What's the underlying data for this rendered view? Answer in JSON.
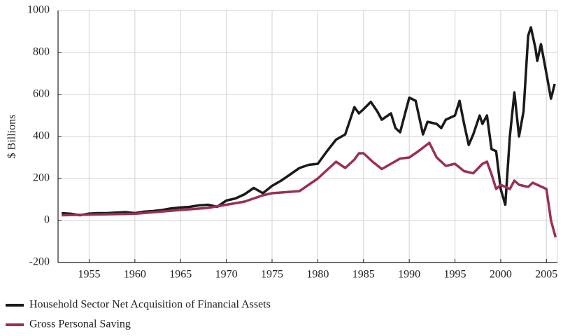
{
  "chart_data": {
    "type": "line",
    "y_label": "$ Billions",
    "xlim": [
      1951.6,
      2006.2
    ],
    "xticks": [
      1955,
      1960,
      1965,
      1970,
      1975,
      1980,
      1985,
      1990,
      1995,
      2000,
      2005
    ],
    "ylim": [
      -200,
      1000
    ],
    "yticks": [
      -200,
      0,
      200,
      400,
      600,
      800,
      1000
    ],
    "grid": true,
    "legend": "bottom-left",
    "series": [
      {
        "name": "Household Sector Net Acquisition of Financial Assets",
        "color": "#1a1a1a",
        "x": [
          1952,
          1953,
          1954,
          1955,
          1956,
          1957,
          1958,
          1959,
          1960,
          1961,
          1962,
          1963,
          1964,
          1965,
          1966,
          1967,
          1968,
          1969,
          1970,
          1971,
          1972,
          1973,
          1974,
          1975,
          1976,
          1977,
          1978,
          1979,
          1980,
          1981,
          1982,
          1983,
          1984,
          1984.5,
          1985,
          1985.8,
          1986.5,
          1987,
          1988,
          1988.5,
          1989,
          1990,
          1990.7,
          1991.5,
          1992,
          1993,
          1993.5,
          1994,
          1995,
          1995.5,
          1996,
          1996.5,
          1997,
          1997.7,
          1998,
          1998.5,
          1999,
          1999.5,
          2000,
          2000.5,
          2001,
          2001.5,
          2002,
          2002.5,
          2003,
          2003.3,
          2003.8,
          2004,
          2004.4,
          2005,
          2005.5,
          2005.9
        ],
        "values": [
          35,
          32,
          25,
          33,
          35,
          35,
          38,
          40,
          35,
          42,
          45,
          50,
          58,
          62,
          65,
          72,
          75,
          65,
          95,
          105,
          125,
          155,
          130,
          165,
          190,
          220,
          250,
          265,
          270,
          330,
          385,
          410,
          540,
          510,
          530,
          565,
          520,
          480,
          510,
          440,
          420,
          585,
          570,
          410,
          470,
          460,
          440,
          480,
          500,
          570,
          460,
          360,
          410,
          500,
          460,
          500,
          340,
          330,
          150,
          75,
          400,
          610,
          400,
          520,
          880,
          920,
          820,
          760,
          840,
          700,
          580,
          650
        ]
      },
      {
        "name": "Gross Personal Saving",
        "color": "#9b3050",
        "x": [
          1952,
          1955,
          1960,
          1965,
          1968,
          1970,
          1972,
          1974,
          1975,
          1978,
          1980,
          1982,
          1983,
          1984,
          1984.5,
          1985,
          1986,
          1987,
          1988,
          1989,
          1990,
          1991,
          1992.2,
          1993,
          1994,
          1995,
          1996,
          1997,
          1998,
          1998.5,
          1999,
          1999.5,
          2000,
          2001,
          2001.5,
          2002,
          2003,
          2003.5,
          2004,
          2005,
          2005.5,
          2006
        ],
        "values": [
          25,
          28,
          32,
          50,
          60,
          75,
          90,
          120,
          130,
          140,
          200,
          280,
          250,
          290,
          320,
          320,
          280,
          245,
          270,
          295,
          300,
          330,
          370,
          300,
          260,
          270,
          235,
          225,
          270,
          280,
          220,
          150,
          170,
          150,
          190,
          170,
          160,
          180,
          170,
          150,
          0,
          -80
        ]
      }
    ]
  }
}
